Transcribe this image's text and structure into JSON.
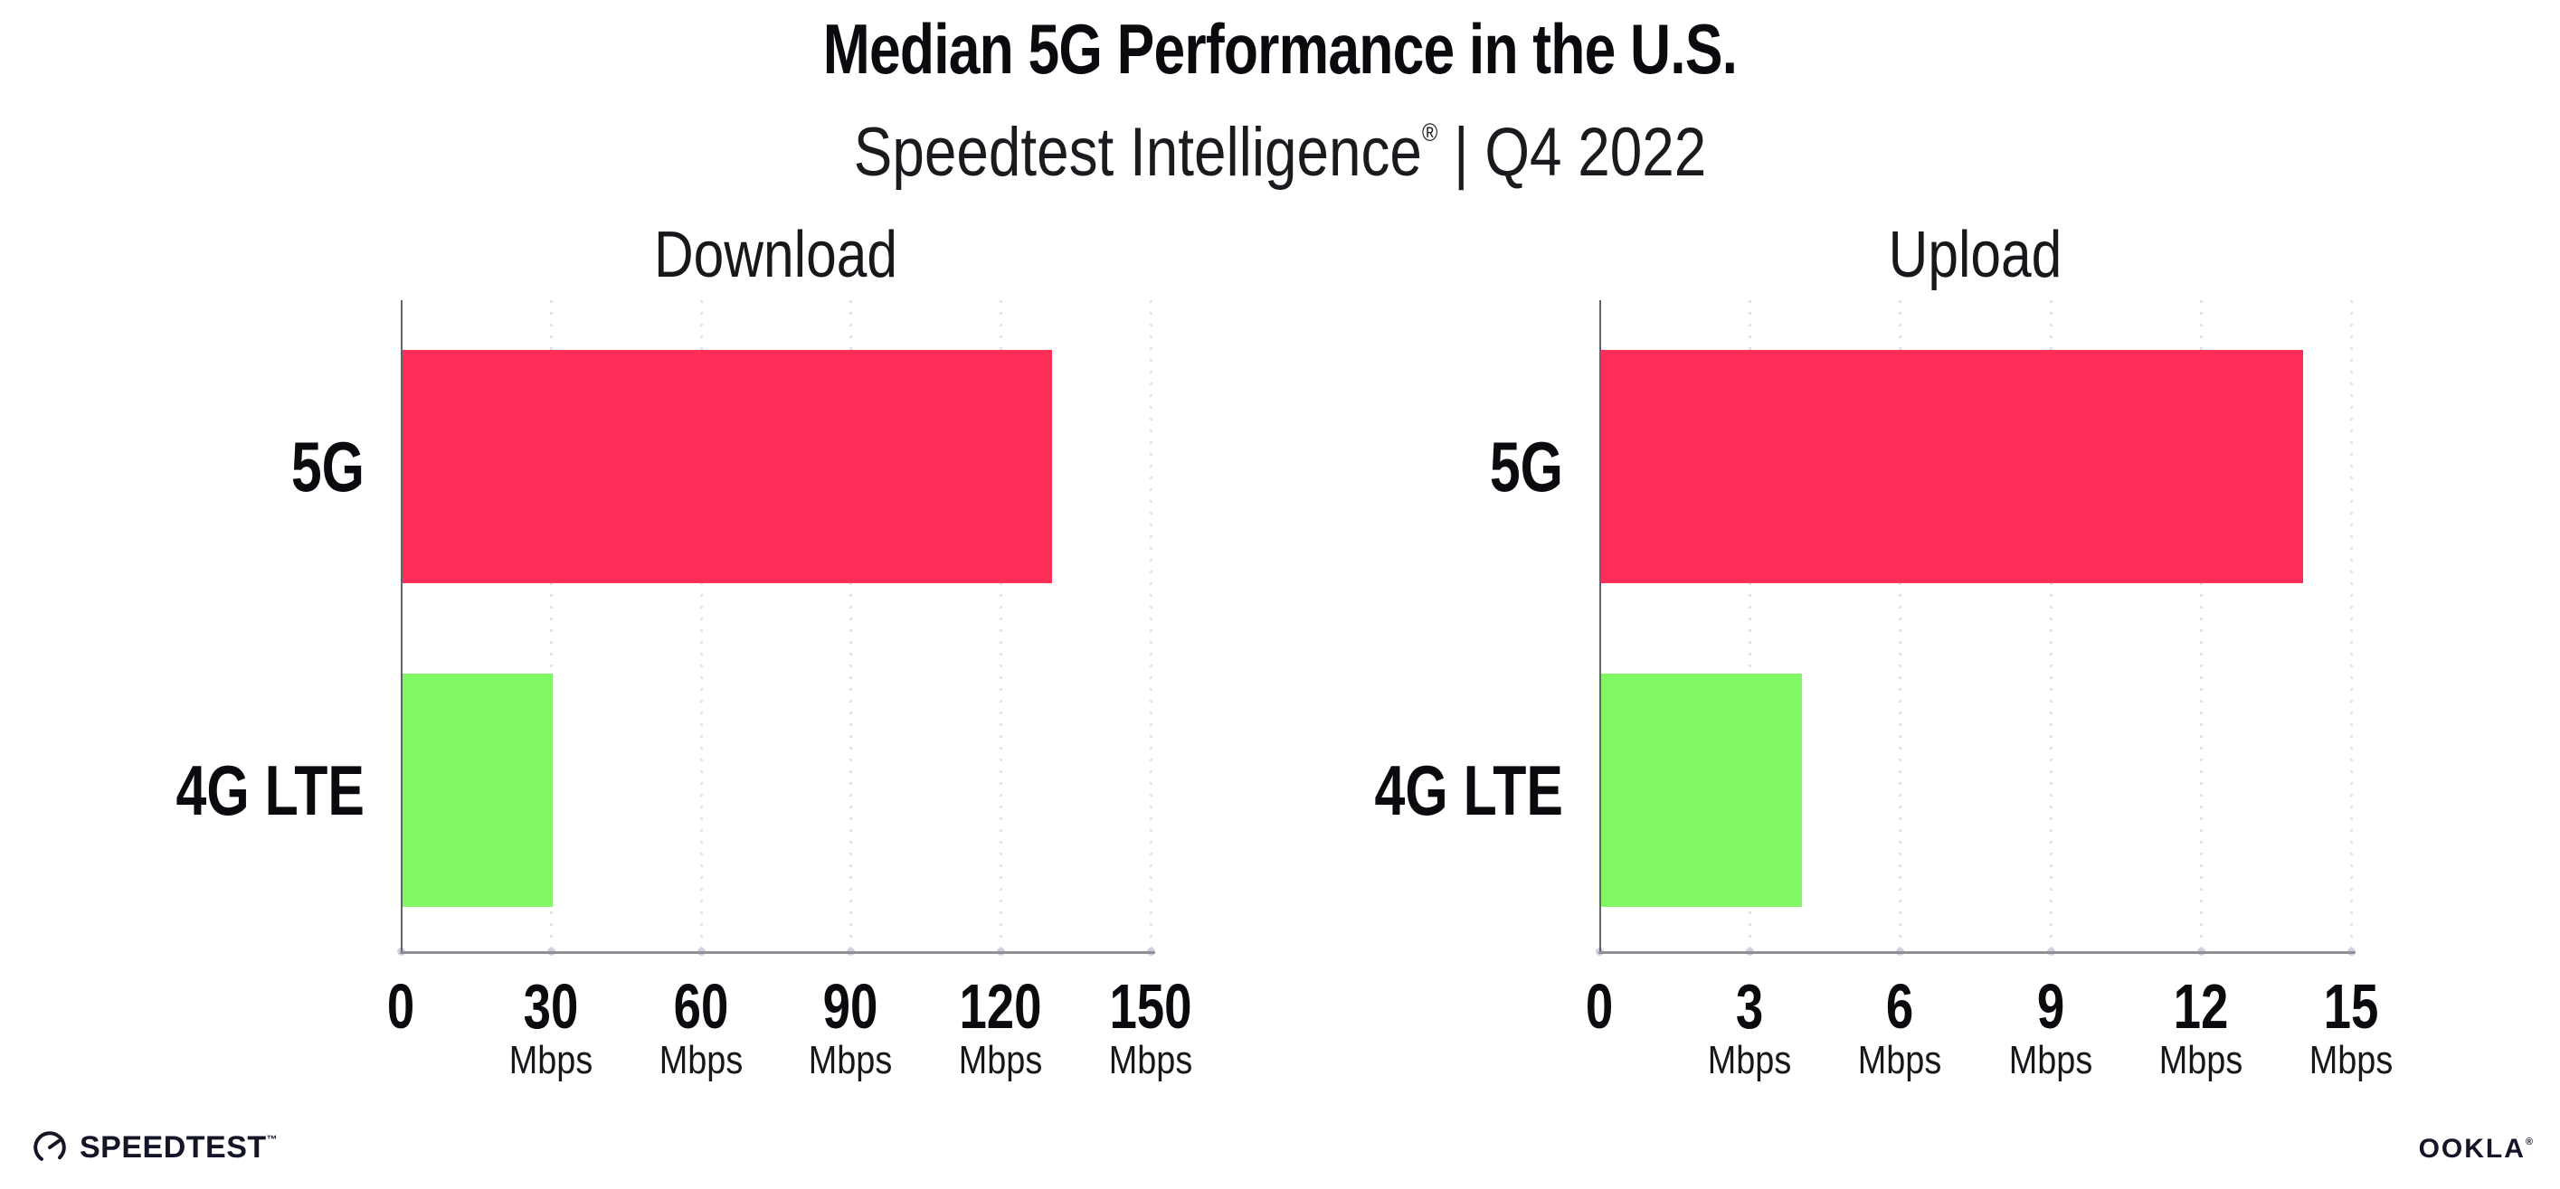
{
  "header": {
    "title": "Median 5G Performance in the U.S.",
    "subtitle_brand": "Speedtest Intelligence",
    "subtitle_reg": "®",
    "subtitle_rest": " | Q4 2022"
  },
  "colors": {
    "bar_5g": "#FD2E58",
    "bar_4g": "#80F866",
    "axis_line": "#8F8F96",
    "grid_dot": "#E2E3ED",
    "text": "#0B0B0F"
  },
  "chart_data": [
    {
      "type": "bar",
      "orientation": "horizontal",
      "title": "Download",
      "categories": [
        "5G",
        "4G LTE"
      ],
      "values": [
        130,
        30
      ],
      "unit": "Mbps",
      "xlim": [
        0,
        150
      ],
      "xticks": [
        0,
        30,
        60,
        90,
        120,
        150
      ],
      "grid": "dotted-vertical",
      "legend": "none"
    },
    {
      "type": "bar",
      "orientation": "horizontal",
      "title": "Upload",
      "categories": [
        "5G",
        "4G LTE"
      ],
      "values": [
        14,
        4
      ],
      "unit": "Mbps",
      "xlim": [
        0,
        15
      ],
      "xticks": [
        0,
        3,
        6,
        9,
        12,
        15
      ],
      "grid": "dotted-vertical",
      "legend": "none"
    }
  ],
  "footer": {
    "speedtest_label": "SPEEDTEST",
    "speedtest_tm": "™",
    "ookla_label": "OOKLA",
    "ookla_reg": "®"
  }
}
